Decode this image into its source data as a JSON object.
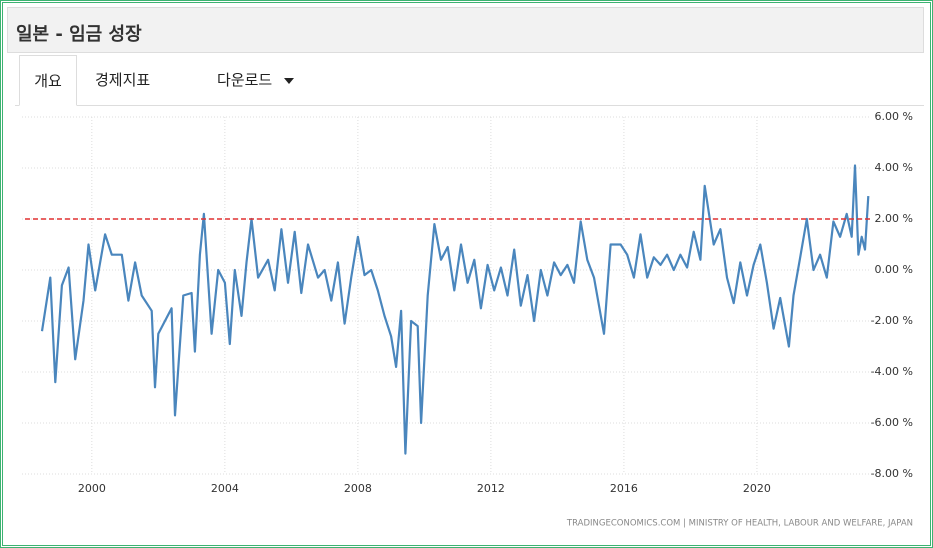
{
  "header": {
    "title": "일본 - 임금 성장"
  },
  "tabs": [
    "개요",
    "경제지표",
    "다운로드"
  ],
  "chart_data": {
    "type": "line",
    "source": "TRADINGECONOMICS.COM | MINISTRY OF HEALTH, LABOUR AND WELFARE, JAPAN",
    "x": [
      1998.5,
      1998.75,
      1998.9,
      1999.1,
      1999.3,
      1999.5,
      1999.75,
      1999.9,
      2000.1,
      2000.4,
      2000.6,
      2000.9,
      2001.1,
      2001.3,
      2001.5,
      2001.8,
      2001.9,
      2002.0,
      2002.4,
      2002.5,
      2002.75,
      2003.0,
      2003.1,
      2003.25,
      2003.37,
      2003.6,
      2003.8,
      2004.0,
      2004.15,
      2004.3,
      2004.5,
      2004.65,
      2004.8,
      2005.0,
      2005.3,
      2005.5,
      2005.7,
      2005.9,
      2006.1,
      2006.3,
      2006.5,
      2006.8,
      2007.0,
      2007.2,
      2007.4,
      2007.6,
      2007.8,
      2008.0,
      2008.2,
      2008.4,
      2008.6,
      2008.8,
      2009.0,
      2009.15,
      2009.3,
      2009.43,
      2009.6,
      2009.8,
      2009.9,
      2010.1,
      2010.3,
      2010.5,
      2010.7,
      2010.9,
      2011.1,
      2011.3,
      2011.5,
      2011.7,
      2011.9,
      2012.1,
      2012.3,
      2012.5,
      2012.7,
      2012.9,
      2013.1,
      2013.3,
      2013.5,
      2013.7,
      2013.9,
      2014.1,
      2014.3,
      2014.5,
      2014.7,
      2014.9,
      2015.1,
      2015.4,
      2015.6,
      2015.9,
      2016.1,
      2016.3,
      2016.5,
      2016.7,
      2016.9,
      2017.1,
      2017.3,
      2017.5,
      2017.7,
      2017.9,
      2018.1,
      2018.3,
      2018.43,
      2018.7,
      2018.9,
      2019.1,
      2019.3,
      2019.5,
      2019.7,
      2019.9,
      2020.1,
      2020.3,
      2020.5,
      2020.7,
      2020.96,
      2021.1,
      2021.3,
      2021.5,
      2021.7,
      2021.9,
      2022.1,
      2022.3,
      2022.5,
      2022.7,
      2022.85,
      2022.95,
      2023.05,
      2023.15,
      2023.25,
      2023.35
    ],
    "series": [
      {
        "name": "임금 성장",
        "color": "#4a86bd",
        "values": [
          -2.4,
          -0.3,
          -4.4,
          -0.6,
          0.1,
          -3.5,
          -1.2,
          1.0,
          -0.8,
          1.4,
          0.6,
          0.6,
          -1.2,
          0.3,
          -1.0,
          -1.6,
          -4.6,
          -2.5,
          -1.5,
          -5.7,
          -1.0,
          -0.9,
          -3.2,
          0.6,
          2.2,
          -2.5,
          0.0,
          -0.5,
          -2.9,
          0.0,
          -1.8,
          0.3,
          2.0,
          -0.3,
          0.4,
          -0.8,
          1.6,
          -0.5,
          1.5,
          -0.9,
          1.0,
          -0.3,
          0.0,
          -1.2,
          0.3,
          -2.1,
          -0.3,
          1.3,
          -0.2,
          0.0,
          -0.8,
          -1.8,
          -2.6,
          -3.8,
          -1.6,
          -7.2,
          -2.0,
          -2.2,
          -6.0,
          -1.0,
          1.8,
          0.4,
          0.9,
          -0.8,
          1.0,
          -0.5,
          0.4,
          -1.5,
          0.2,
          -0.8,
          0.1,
          -1.0,
          0.8,
          -1.4,
          -0.2,
          -2.0,
          0.0,
          -1.0,
          0.3,
          -0.2,
          0.2,
          -0.5,
          1.9,
          0.4,
          -0.3,
          -2.5,
          1.0,
          1.0,
          0.6,
          -0.3,
          1.4,
          -0.3,
          0.5,
          0.2,
          0.6,
          0.0,
          0.6,
          0.1,
          1.5,
          0.4,
          3.3,
          1.0,
          1.6,
          -0.3,
          -1.3,
          0.3,
          -1.0,
          0.2,
          1.0,
          -0.5,
          -2.3,
          -1.1,
          -3.0,
          -1.0,
          0.5,
          2.0,
          0.0,
          0.6,
          -0.3,
          1.9,
          1.3,
          2.2,
          1.3,
          4.1,
          0.6,
          1.3,
          0.8,
          2.9
        ]
      }
    ],
    "reference_line": {
      "value": 2,
      "color": "#e03030"
    },
    "xlim": [
      1997.9,
      2023.4
    ],
    "xticks": [
      2000,
      2004,
      2008,
      2012,
      2016,
      2020
    ],
    "ylim": [
      -8,
      6
    ],
    "yticks": [
      {
        "value": 6,
        "label": "6.00 %"
      },
      {
        "value": 4,
        "label": "4.00 %"
      },
      {
        "value": 2,
        "label": "2.00 %"
      },
      {
        "value": 0,
        "label": "0.00 %"
      },
      {
        "value": -2,
        "label": "-2.00 %"
      },
      {
        "value": -4,
        "label": "-4.00 %"
      },
      {
        "value": -6,
        "label": "-6.00 %"
      },
      {
        "value": -8,
        "label": "-8.00 %"
      }
    ],
    "grid": true
  }
}
